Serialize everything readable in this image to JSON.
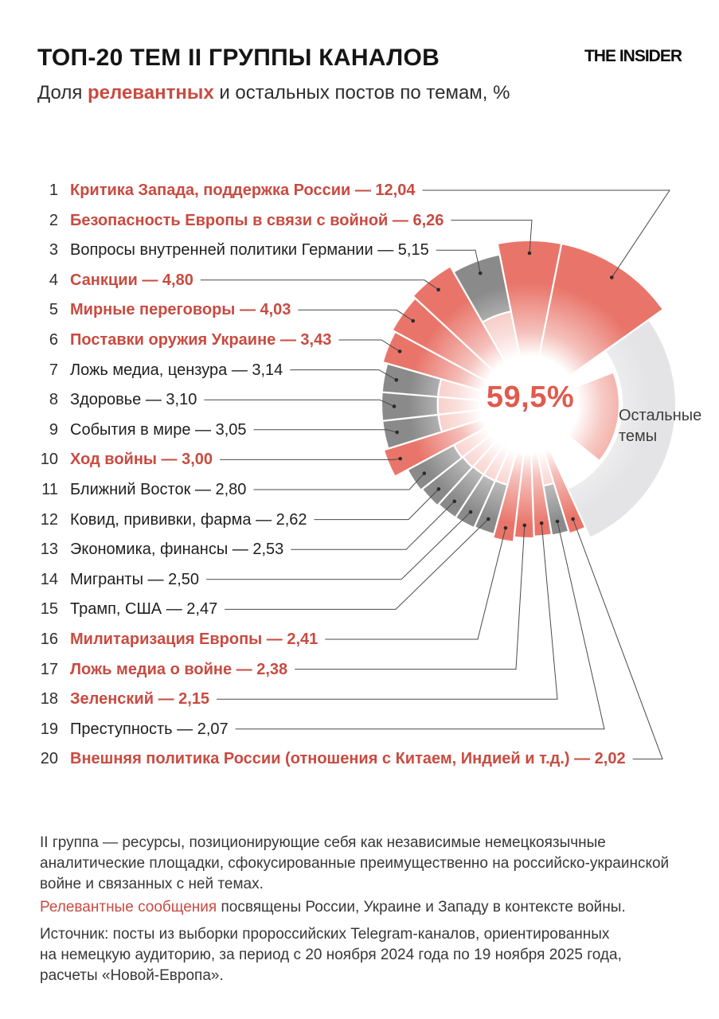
{
  "header": {
    "title": "ТОП-20 ТЕМ II ГРУППЫ КАНАЛОВ",
    "subtitle_prefix": "Доля ",
    "subtitle_highlight": "релевантных",
    "subtitle_suffix": " и остальных постов по темам, %",
    "logo": "THE INSIDER"
  },
  "chart_data": {
    "type": "pie",
    "variant": "rose-donut",
    "title": "ТОП-20 ТЕМ II ГРУППЫ КАНАЛОВ",
    "units": "%",
    "center_label": "59,5%",
    "other_segment_label": "Остальные темы",
    "other_label_lines": [
      "Остальные",
      "темы"
    ],
    "items": [
      {
        "rank": 1,
        "label": "Критика Запада, поддержка России",
        "value": 12.04,
        "value_text": "12,04",
        "relevant": true
      },
      {
        "rank": 2,
        "label": "Безопасность Европы в связи с войной",
        "value": 6.26,
        "value_text": "6,26",
        "relevant": true
      },
      {
        "rank": 3,
        "label": "Вопросы внутренней политики Германии",
        "value": 5.15,
        "value_text": "5,15",
        "relevant": false
      },
      {
        "rank": 4,
        "label": "Санкции",
        "value": 4.8,
        "value_text": "4,80",
        "relevant": true
      },
      {
        "rank": 5,
        "label": "Мирные переговоры",
        "value": 4.03,
        "value_text": "4,03",
        "relevant": true
      },
      {
        "rank": 6,
        "label": "Поставки оружия Украине",
        "value": 3.43,
        "value_text": "3,43",
        "relevant": true
      },
      {
        "rank": 7,
        "label": "Ложь медиа, цензура",
        "value": 3.14,
        "value_text": "3,14",
        "relevant": false
      },
      {
        "rank": 8,
        "label": "Здоровье",
        "value": 3.1,
        "value_text": "3,10",
        "relevant": false
      },
      {
        "rank": 9,
        "label": "События в мире",
        "value": 3.05,
        "value_text": "3,05",
        "relevant": false
      },
      {
        "rank": 10,
        "label": "Ход войны",
        "value": 3.0,
        "value_text": "3,00",
        "relevant": true
      },
      {
        "rank": 11,
        "label": "Ближний Восток",
        "value": 2.8,
        "value_text": "2,80",
        "relevant": false
      },
      {
        "rank": 12,
        "label": "Ковид, прививки, фарма",
        "value": 2.62,
        "value_text": "2,62",
        "relevant": false
      },
      {
        "rank": 13,
        "label": "Экономика, финансы",
        "value": 2.53,
        "value_text": "2,53",
        "relevant": false
      },
      {
        "rank": 14,
        "label": "Мигранты",
        "value": 2.5,
        "value_text": "2,50",
        "relevant": false
      },
      {
        "rank": 15,
        "label": "Трамп, США",
        "value": 2.47,
        "value_text": "2,47",
        "relevant": false
      },
      {
        "rank": 16,
        "label": "Милитаризация Европы",
        "value": 2.41,
        "value_text": "2,41",
        "relevant": true
      },
      {
        "rank": 17,
        "label": "Ложь медиа о войне",
        "value": 2.38,
        "value_text": "2,38",
        "relevant": true
      },
      {
        "rank": 18,
        "label": "Зеленский",
        "value": 2.15,
        "value_text": "2,15",
        "relevant": true
      },
      {
        "rank": 19,
        "label": "Преступность",
        "value": 2.07,
        "value_text": "2,07",
        "relevant": false
      },
      {
        "rank": 20,
        "label": "Внешняя политика России (отношения с Китаем, Индией и т.д.)",
        "value": 2.02,
        "value_text": "2,02",
        "relevant": true
      }
    ],
    "colors": {
      "relevant_red": "#e9756a",
      "inner_salmon": "#ee8a7e",
      "topic_gray": "#8a8a8a",
      "other_light_gray": "#e4e4e6",
      "accent_text_red": "#c84b41",
      "center_label_red": "#e15a4e"
    }
  },
  "footnotes": {
    "group_definition": "II группа — ресурсы, позиционирующие себя как независимые немецкоязычные\nаналитические площадки, сфокусированные преимущественно на российско-украинской\nвойне и связанных с ней темах.",
    "relevant_highlight": "Релевантные сообщения",
    "relevant_rest": " посвящены России, Украине и Западу в контексте войны.",
    "source": "Источник: посты из выборки пророссийских Telegram-каналов, ориентированных\nна немецкую аудиторию, за период с 20 ноября 2024 года по 19 ноября 2025 года,\nрасчеты «Новой-Европа»."
  }
}
